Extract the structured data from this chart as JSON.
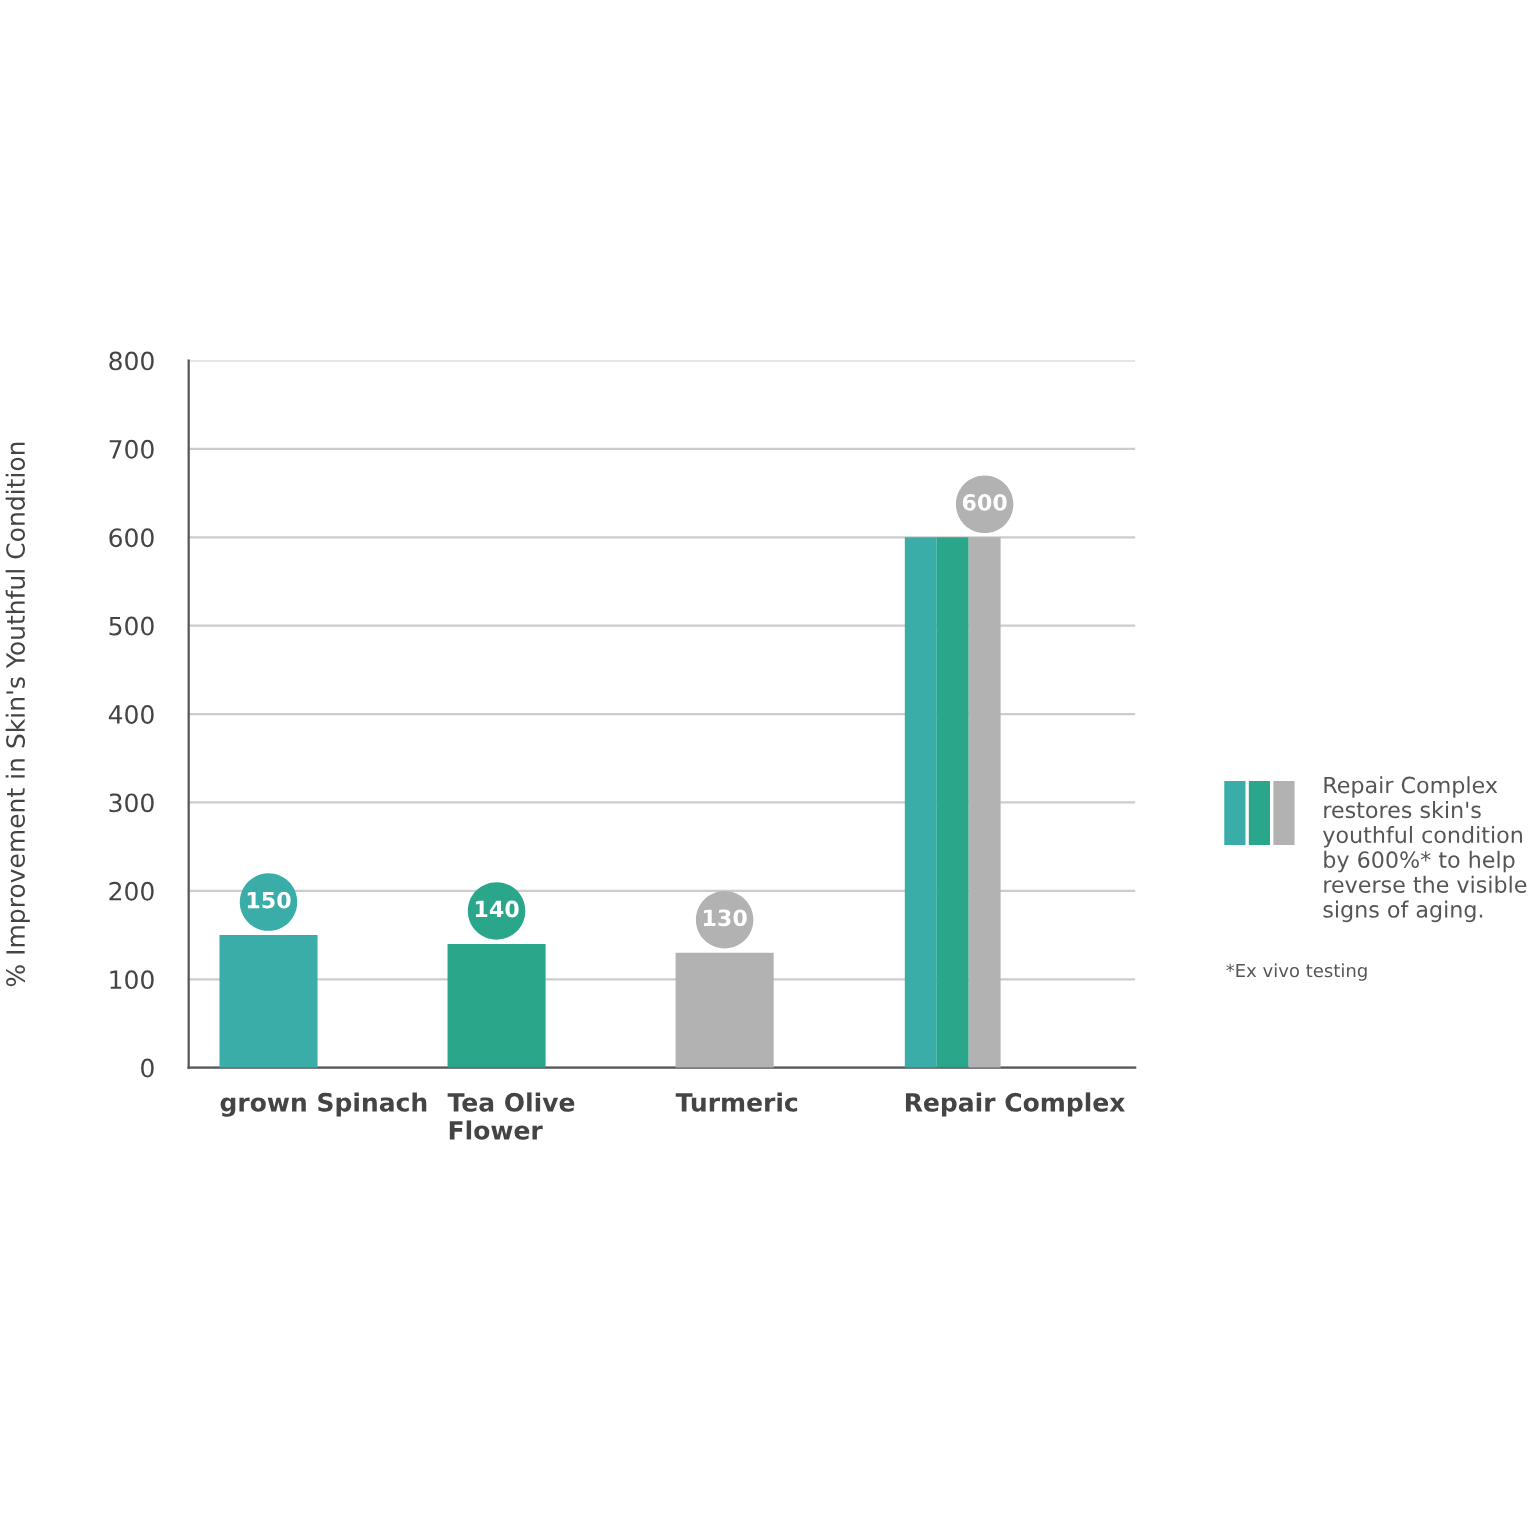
{
  "chart_data": {
    "type": "bar",
    "ylabel": "% Improvement in Skin's Youthful Condition",
    "categories": [
      "grown Spinach",
      "Tea Olive\nFlower",
      "Turmeric",
      "Repair Complex"
    ],
    "series": [
      {
        "color": "#3aada8",
        "values": [
          150,
          null,
          null,
          600
        ],
        "value_labels": [
          "150",
          null,
          null,
          null
        ]
      },
      {
        "color": "#2aa68a",
        "values": [
          null,
          140,
          null,
          600
        ],
        "value_labels": [
          null,
          "140",
          null,
          null
        ]
      },
      {
        "color": "#b2b2b2",
        "values": [
          null,
          null,
          130,
          600
        ],
        "value_labels": [
          null,
          null,
          "130",
          "600"
        ]
      }
    ],
    "ylim": [
      0,
      800
    ],
    "yticks": [
      0,
      100,
      200,
      300,
      400,
      500,
      600,
      700,
      800
    ],
    "grid": "y",
    "legend": false,
    "annotations": [
      "Repair Complex\nrestores skin's\nyouthful condition\nby 600%* to help\nreverse the visible\nsigns of aging.",
      "*Ex vivo testing"
    ]
  }
}
